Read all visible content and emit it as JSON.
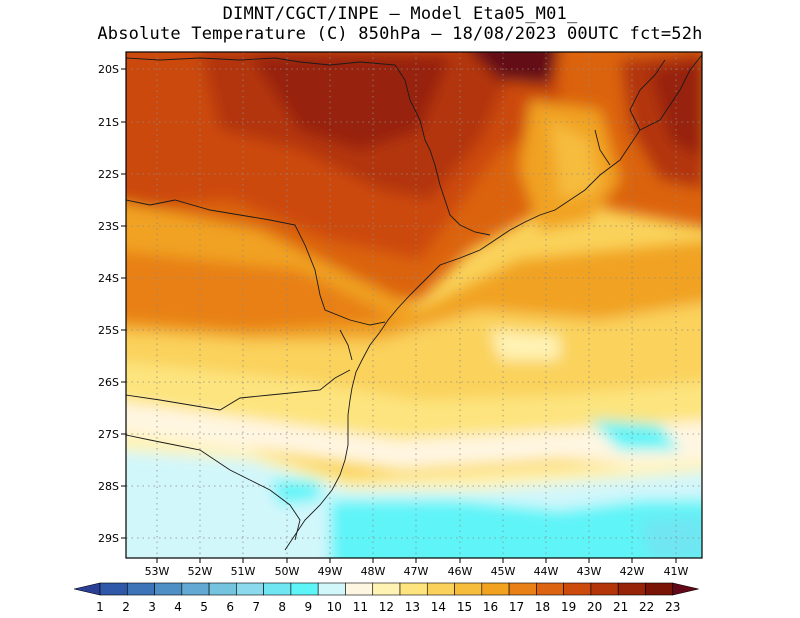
{
  "title": {
    "line1": "DIMNT/CGCT/INPE –  Model Eta05_M01_",
    "line2": "Absolute Temperature (C) 850hPa –  18/08/2023 00UTC fct=52h"
  },
  "map": {
    "lat_labels": [
      "20S",
      "21S",
      "22S",
      "23S",
      "24S",
      "25S",
      "26S",
      "27S",
      "28S",
      "29S"
    ],
    "lon_labels": [
      "53W",
      "52W",
      "51W",
      "50W",
      "49W",
      "48W",
      "47W",
      "46W",
      "45W",
      "44W",
      "43W",
      "42W",
      "41W"
    ]
  },
  "colorbar": {
    "labels": [
      "1",
      "2",
      "3",
      "4",
      "5",
      "6",
      "7",
      "8",
      "9",
      "10",
      "11",
      "12",
      "13",
      "14",
      "15",
      "16",
      "17",
      "18",
      "19",
      "20",
      "21",
      "22",
      "23"
    ],
    "colors": [
      "#2a3f95",
      "#2f58a8",
      "#3d74b8",
      "#4e8fc6",
      "#62a9d3",
      "#74c3df",
      "#8ad9ec",
      "#6fe6f2",
      "#5ef4f8",
      "#d2f7fb",
      "#fff6e2",
      "#fff3b4",
      "#fde47e",
      "#fad25b",
      "#f6bc3c",
      "#f1a220",
      "#e88015",
      "#dc6410",
      "#cc4a0b",
      "#b33508",
      "#972407",
      "#7a1407",
      "#630818"
    ]
  }
}
